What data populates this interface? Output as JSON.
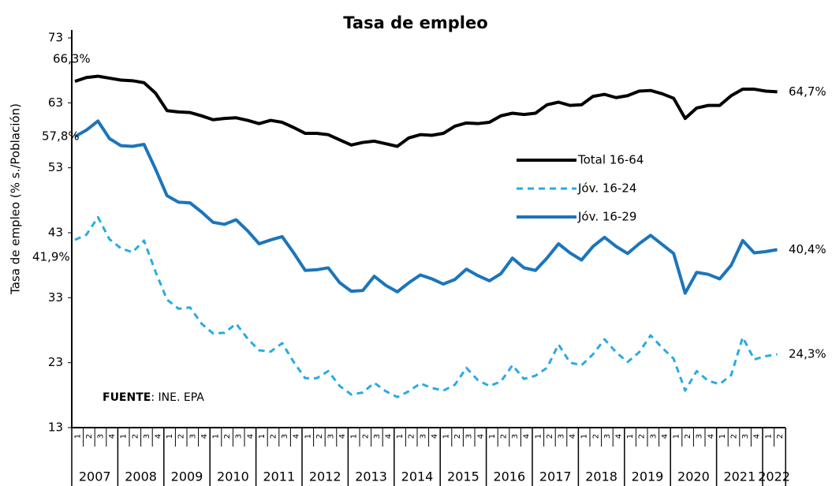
{
  "chart_data": {
    "type": "line",
    "title": "Tasa de empleo",
    "y_label": "Tasa de empleo (% s./Población)",
    "source_label": "FUENTE",
    "source_text": ": INE. EPA",
    "years": [
      "2007",
      "2008",
      "2009",
      "2010",
      "2011",
      "2012",
      "2013",
      "2014",
      "2015",
      "2016",
      "2017",
      "2018",
      "2019",
      "2020",
      "2021",
      "2022"
    ],
    "categories": [
      "1",
      "2",
      "3",
      "4",
      "1",
      "2",
      "3",
      "4",
      "1",
      "2",
      "3",
      "4",
      "1",
      "2",
      "3",
      "4",
      "1",
      "2",
      "3",
      "4",
      "1",
      "2",
      "3",
      "4",
      "1",
      "2",
      "3",
      "4",
      "1",
      "2",
      "3",
      "4",
      "1",
      "2",
      "3",
      "4",
      "1",
      "2",
      "3",
      "4",
      "1",
      "2",
      "3",
      "4",
      "1",
      "2",
      "3",
      "4",
      "1",
      "2",
      "3",
      "4",
      "1",
      "2",
      "3",
      "4",
      "1",
      "2",
      "3",
      "4",
      "1",
      "2"
    ],
    "ylim": [
      13,
      73
    ],
    "yticks": [
      13,
      23,
      33,
      43,
      53,
      63,
      73
    ],
    "grid": false,
    "legend": "right",
    "series": [
      {
        "name": "Total 16-64",
        "color": "#000000",
        "style": "solid",
        "values": [
          66.3,
          66.9,
          67.1,
          66.8,
          66.5,
          66.4,
          66.1,
          64.5,
          61.8,
          61.6,
          61.5,
          61.0,
          60.4,
          60.6,
          60.7,
          60.3,
          59.8,
          60.3,
          60.0,
          59.2,
          58.3,
          58.3,
          58.1,
          57.3,
          56.5,
          56.9,
          57.1,
          56.7,
          56.3,
          57.6,
          58.1,
          58.0,
          58.3,
          59.4,
          59.9,
          59.8,
          60.0,
          61.0,
          61.4,
          61.2,
          61.4,
          62.7,
          63.1,
          62.6,
          62.7,
          64.0,
          64.3,
          63.8,
          64.1,
          64.8,
          64.9,
          64.4,
          63.7,
          60.6,
          62.2,
          62.6,
          62.6,
          64.1,
          65.1,
          65.1,
          64.8,
          64.7
        ],
        "value_labels": [
          "66,3%",
          null,
          null,
          null,
          null,
          null,
          null,
          null,
          null,
          null,
          null,
          null,
          null,
          null,
          null,
          null,
          null,
          null,
          null,
          null,
          null,
          null,
          null,
          null,
          null,
          null,
          null,
          null,
          null,
          null,
          null,
          null,
          null,
          null,
          null,
          null,
          null,
          null,
          null,
          null,
          null,
          null,
          null,
          null,
          null,
          null,
          null,
          null,
          null,
          null,
          null,
          null,
          null,
          null,
          null,
          null,
          null,
          null,
          null,
          null,
          null,
          "64,7%"
        ]
      },
      {
        "name": "Jóv. 16-24",
        "color": "#29abe2",
        "style": "dashed",
        "values": [
          41.9,
          42.7,
          45.4,
          42.0,
          40.6,
          40.0,
          41.8,
          37.0,
          32.7,
          31.3,
          31.5,
          29.0,
          27.5,
          27.6,
          29.0,
          26.7,
          24.9,
          24.7,
          26.0,
          23.1,
          20.6,
          20.6,
          21.7,
          19.4,
          18.1,
          18.4,
          19.9,
          18.6,
          17.7,
          18.6,
          19.8,
          19.1,
          18.7,
          19.6,
          22.2,
          20.3,
          19.4,
          20.1,
          22.6,
          20.5,
          21.0,
          22.2,
          25.8,
          23.0,
          22.6,
          24.3,
          26.6,
          24.6,
          23.1,
          24.6,
          27.2,
          25.3,
          23.6,
          18.7,
          21.7,
          20.2,
          19.7,
          21.1,
          26.9,
          23.5,
          24.0,
          24.3
        ],
        "value_labels": [
          "41,9%",
          null,
          null,
          null,
          null,
          null,
          null,
          null,
          null,
          null,
          null,
          null,
          null,
          null,
          null,
          null,
          null,
          null,
          null,
          null,
          null,
          null,
          null,
          null,
          null,
          null,
          null,
          null,
          null,
          null,
          null,
          null,
          null,
          null,
          null,
          null,
          null,
          null,
          null,
          null,
          null,
          null,
          null,
          null,
          null,
          null,
          null,
          null,
          null,
          null,
          null,
          null,
          null,
          null,
          null,
          null,
          null,
          null,
          null,
          null,
          null,
          "24,3%"
        ]
      },
      {
        "name": "Jóv. 16-29",
        "color": "#1b75bb",
        "style": "solid",
        "values": [
          57.8,
          58.8,
          60.2,
          57.5,
          56.4,
          56.3,
          56.6,
          52.8,
          48.7,
          47.7,
          47.6,
          46.2,
          44.6,
          44.3,
          45.0,
          43.3,
          41.3,
          41.9,
          42.4,
          39.9,
          37.2,
          37.3,
          37.6,
          35.3,
          34.0,
          34.1,
          36.3,
          34.9,
          33.9,
          35.3,
          36.5,
          35.9,
          35.1,
          35.8,
          37.4,
          36.4,
          35.6,
          36.7,
          39.1,
          37.6,
          37.2,
          39.1,
          41.3,
          39.9,
          38.8,
          40.9,
          42.3,
          40.9,
          39.8,
          41.3,
          42.6,
          41.2,
          39.8,
          33.7,
          36.9,
          36.6,
          35.9,
          38.0,
          41.8,
          39.9,
          40.1,
          40.4
        ],
        "value_labels": [
          "57,8%",
          null,
          null,
          null,
          null,
          null,
          null,
          null,
          null,
          null,
          null,
          null,
          null,
          null,
          null,
          null,
          null,
          null,
          null,
          null,
          null,
          null,
          null,
          null,
          null,
          null,
          null,
          null,
          null,
          null,
          null,
          null,
          null,
          null,
          null,
          null,
          null,
          null,
          null,
          null,
          null,
          null,
          null,
          null,
          null,
          null,
          null,
          null,
          null,
          null,
          null,
          null,
          null,
          null,
          null,
          null,
          null,
          null,
          null,
          null,
          null,
          "40,4%"
        ]
      }
    ]
  }
}
